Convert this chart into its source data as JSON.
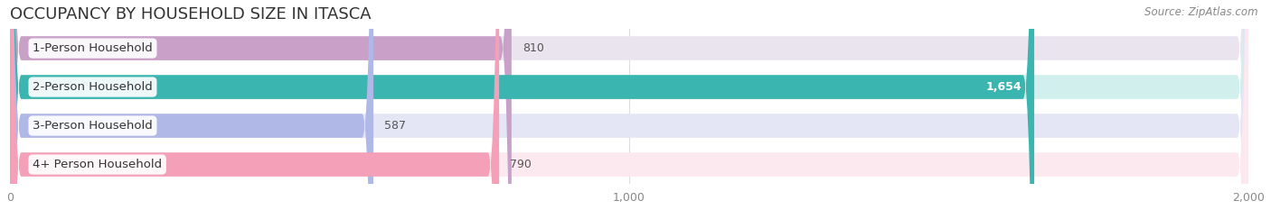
{
  "title": "OCCUPANCY BY HOUSEHOLD SIZE IN ITASCA",
  "source": "Source: ZipAtlas.com",
  "categories": [
    "1-Person Household",
    "2-Person Household",
    "3-Person Household",
    "4+ Person Household"
  ],
  "values": [
    810,
    1654,
    587,
    790
  ],
  "bar_colors": [
    "#c9a0c8",
    "#3ab5b0",
    "#b0b8e8",
    "#f4a0b8"
  ],
  "bar_bg_colors": [
    "#eae4ee",
    "#d0efed",
    "#e4e6f5",
    "#fce8ef"
  ],
  "xlim": [
    0,
    2000
  ],
  "xticks": [
    0,
    1000,
    2000
  ],
  "background_color": "#ffffff",
  "bar_height": 0.62,
  "title_fontsize": 13,
  "source_fontsize": 8.5,
  "label_fontsize": 9.5,
  "value_fontsize": 9,
  "tick_fontsize": 9
}
